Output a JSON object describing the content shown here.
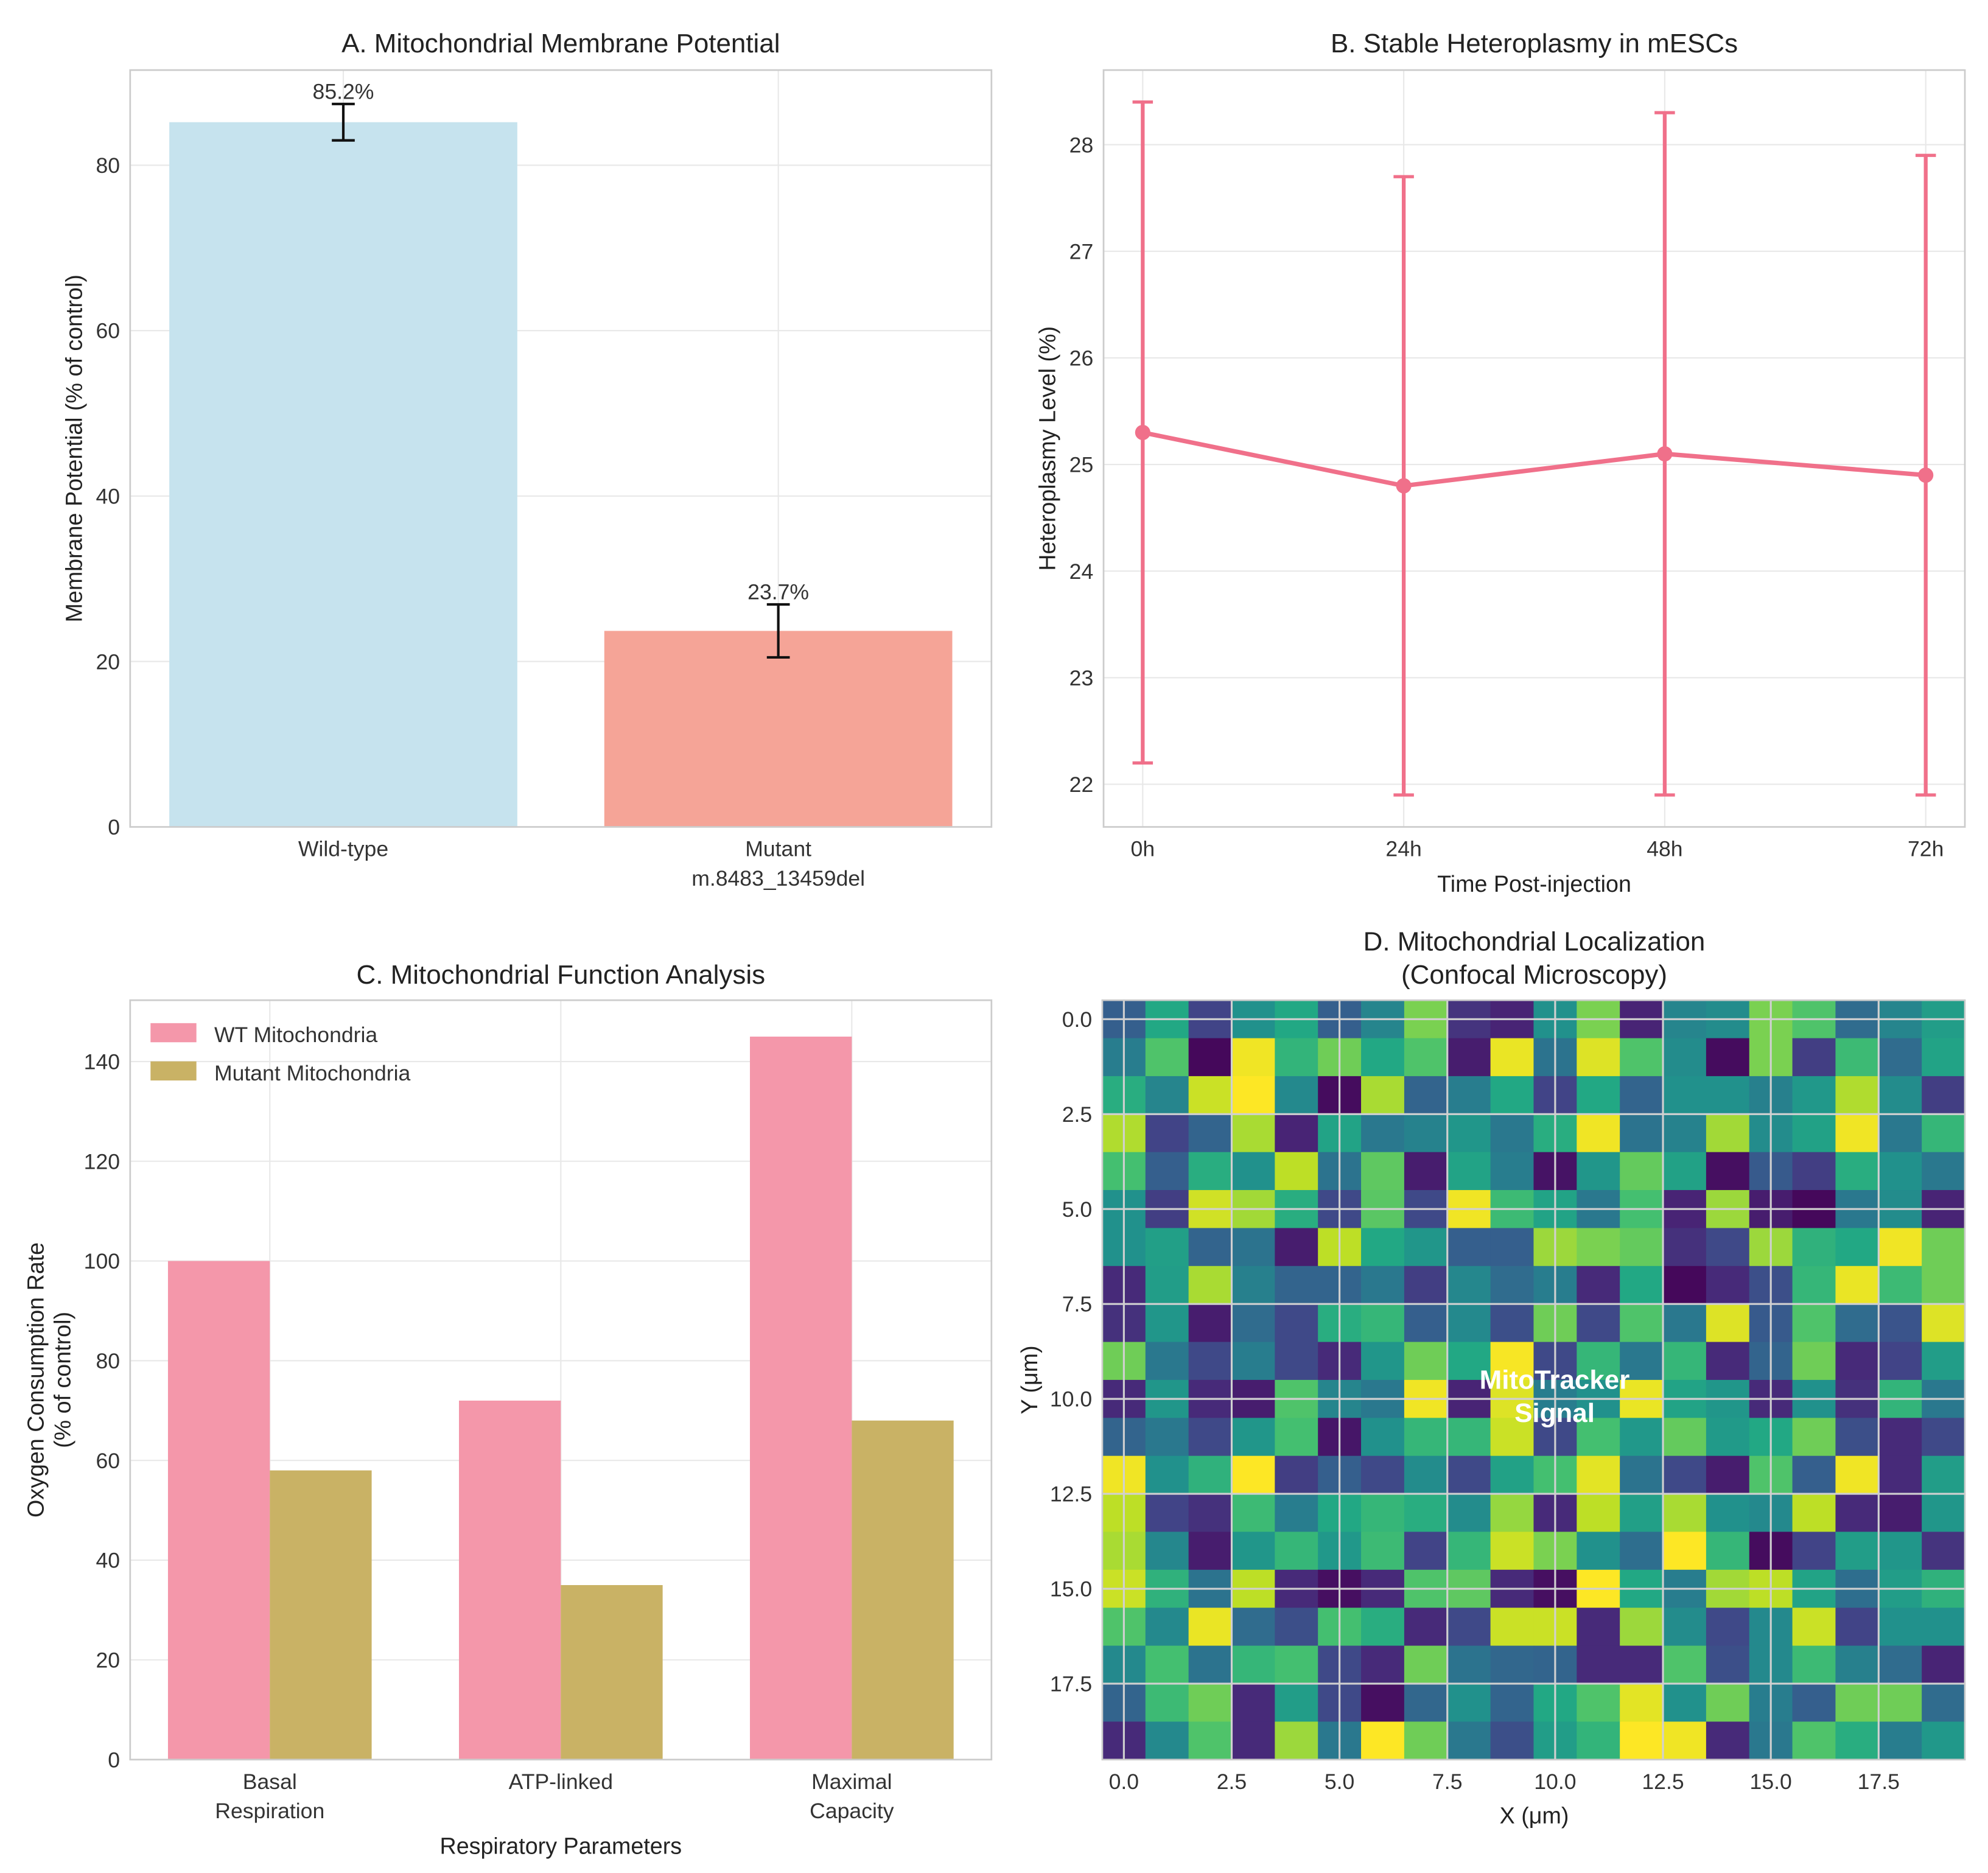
{
  "chart_data": [
    {
      "panel": "A",
      "type": "bar",
      "title": "A. Mitochondrial Membrane Potential",
      "ylabel": "Membrane Potential (% of control)",
      "xlabel": "",
      "categories": [
        "Wild-type",
        "Mutant\nm.8483_13459del"
      ],
      "values": [
        85.2,
        23.7
      ],
      "errors": [
        2.2,
        3.2
      ],
      "data_labels": [
        "85.2%",
        "23.7%"
      ],
      "colors": [
        "#c6e3ee",
        "#f5a497"
      ],
      "ylim": [
        0,
        91.5
      ],
      "yticks": [
        0,
        20,
        40,
        60,
        80
      ],
      "grid": true
    },
    {
      "panel": "B",
      "type": "line",
      "title": "B. Stable Heteroplasmy in mESCs",
      "xlabel": "Time Post-injection",
      "ylabel": "Heteroplasmy Level (%)",
      "categories": [
        "0h",
        "24h",
        "48h",
        "72h"
      ],
      "values": [
        25.3,
        24.8,
        25.1,
        24.9
      ],
      "errors": [
        3.1,
        2.9,
        3.2,
        3.0
      ],
      "color": "#f0708a",
      "ylim": [
        21.6,
        28.7
      ],
      "yticks": [
        22,
        23,
        24,
        25,
        26,
        27,
        28
      ],
      "grid": true
    },
    {
      "panel": "C",
      "type": "bar",
      "title": "C. Mitochondrial Function Analysis",
      "xlabel": "Respiratory Parameters",
      "ylabel": [
        "Oxygen Consumption Rate",
        "(% of control)"
      ],
      "categories": [
        "Basal\nRespiration",
        "ATP-linked",
        "Maximal\nCapacity"
      ],
      "series": [
        {
          "name": "WT Mitochondria",
          "values": [
            100,
            72,
            145
          ],
          "color": "#f497aa"
        },
        {
          "name": "Mutant Mitochondria",
          "values": [
            58,
            35,
            68
          ],
          "color": "#c9b265"
        }
      ],
      "ylim": [
        0,
        152.3
      ],
      "yticks": [
        0,
        20,
        40,
        60,
        80,
        100,
        120,
        140
      ],
      "legend": "top-left",
      "grid": true
    },
    {
      "panel": "D",
      "type": "heatmap",
      "title": [
        "D. Mitochondrial Localization",
        "(Confocal Microscopy)"
      ],
      "xlabel": "X (μm)",
      "ylabel": "Y (μm)",
      "annotation": [
        "MitoTracker",
        "Signal"
      ],
      "colormap": "viridis",
      "xlim": [
        -0.5,
        19.5
      ],
      "ylim": [
        19.5,
        -0.5
      ],
      "xticks": [
        "0.0",
        "2.5",
        "5.0",
        "7.5",
        "10.0",
        "12.5",
        "15.0",
        "17.5"
      ],
      "yticks": [
        "0.0",
        "2.5",
        "5.0",
        "7.5",
        "10.0",
        "12.5",
        "15.0",
        "17.5"
      ],
      "values": [
        [
          0.3,
          0.6,
          0.2,
          0.5,
          0.6,
          0.3,
          0.45,
          0.8,
          0.15,
          0.1,
          0.5,
          0.8,
          0.1,
          0.45,
          0.48,
          0.8,
          0.72,
          0.35,
          0.45,
          0.55
        ],
        [
          0.42,
          0.72,
          0.02,
          0.98,
          0.65,
          0.78,
          0.6,
          0.72,
          0.08,
          0.97,
          0.38,
          0.95,
          0.72,
          0.48,
          0.03,
          0.8,
          0.18,
          0.68,
          0.35,
          0.58
        ],
        [
          0.62,
          0.45,
          0.92,
          1.0,
          0.47,
          0.03,
          0.87,
          0.32,
          0.42,
          0.6,
          0.2,
          0.6,
          0.32,
          0.5,
          0.5,
          0.43,
          0.53,
          0.88,
          0.48,
          0.18
        ],
        [
          0.88,
          0.2,
          0.32,
          0.87,
          0.1,
          0.58,
          0.4,
          0.44,
          0.52,
          0.4,
          0.62,
          0.98,
          0.38,
          0.44,
          0.86,
          0.48,
          0.57,
          0.98,
          0.4,
          0.66
        ],
        [
          0.7,
          0.3,
          0.62,
          0.5,
          0.9,
          0.38,
          0.75,
          0.08,
          0.58,
          0.42,
          0.05,
          0.52,
          0.76,
          0.57,
          0.04,
          0.28,
          0.18,
          0.62,
          0.5,
          0.4
        ],
        [
          0.5,
          0.18,
          0.93,
          0.86,
          0.62,
          0.22,
          0.74,
          0.22,
          0.98,
          0.68,
          0.58,
          0.4,
          0.7,
          0.1,
          0.85,
          0.08,
          0.02,
          0.4,
          0.48,
          0.1
        ],
        [
          0.5,
          0.56,
          0.32,
          0.38,
          0.08,
          0.9,
          0.6,
          0.52,
          0.3,
          0.3,
          0.85,
          0.8,
          0.76,
          0.14,
          0.22,
          0.85,
          0.64,
          0.6,
          0.98,
          0.78
        ],
        [
          0.12,
          0.55,
          0.87,
          0.43,
          0.32,
          0.32,
          0.4,
          0.18,
          0.46,
          0.35,
          0.42,
          0.12,
          0.6,
          0.02,
          0.12,
          0.24,
          0.66,
          0.97,
          0.68,
          0.78
        ],
        [
          0.14,
          0.52,
          0.08,
          0.35,
          0.22,
          0.62,
          0.66,
          0.3,
          0.47,
          0.24,
          0.78,
          0.22,
          0.72,
          0.4,
          0.95,
          0.28,
          0.72,
          0.35,
          0.26,
          0.95
        ],
        [
          0.78,
          0.4,
          0.22,
          0.42,
          0.22,
          0.12,
          0.52,
          0.78,
          0.6,
          0.99,
          0.22,
          0.66,
          0.4,
          0.66,
          0.12,
          0.32,
          0.78,
          0.12,
          0.2,
          0.55
        ],
        [
          0.12,
          0.52,
          0.12,
          0.08,
          0.72,
          0.45,
          0.4,
          0.98,
          0.1,
          0.95,
          0.42,
          0.5,
          0.97,
          0.58,
          0.52,
          0.12,
          0.5,
          0.14,
          0.65,
          0.4
        ],
        [
          0.32,
          0.4,
          0.22,
          0.52,
          0.7,
          0.06,
          0.5,
          0.66,
          0.66,
          0.92,
          0.22,
          0.7,
          0.53,
          0.76,
          0.54,
          0.6,
          0.78,
          0.24,
          0.12,
          0.22
        ],
        [
          0.98,
          0.5,
          0.64,
          1.0,
          0.18,
          0.3,
          0.22,
          0.48,
          0.22,
          0.57,
          0.7,
          0.96,
          0.38,
          0.22,
          0.08,
          0.72,
          0.3,
          0.98,
          0.12,
          0.55
        ],
        [
          0.9,
          0.2,
          0.14,
          0.68,
          0.42,
          0.6,
          0.66,
          0.62,
          0.48,
          0.84,
          0.12,
          0.9,
          0.56,
          0.87,
          0.5,
          0.47,
          0.9,
          0.12,
          0.08,
          0.52
        ],
        [
          0.87,
          0.46,
          0.08,
          0.52,
          0.66,
          0.53,
          0.68,
          0.2,
          0.66,
          0.92,
          0.8,
          0.5,
          0.36,
          1.0,
          0.66,
          0.03,
          0.2,
          0.55,
          0.52,
          0.15
        ],
        [
          0.92,
          0.64,
          0.38,
          0.9,
          0.12,
          0.04,
          0.12,
          0.72,
          0.75,
          0.12,
          0.04,
          1.0,
          0.6,
          0.42,
          0.86,
          0.9,
          0.58,
          0.36,
          0.55,
          0.64
        ],
        [
          0.72,
          0.47,
          0.97,
          0.35,
          0.24,
          0.7,
          0.62,
          0.12,
          0.22,
          0.92,
          0.92,
          0.12,
          0.85,
          0.48,
          0.22,
          0.47,
          0.92,
          0.2,
          0.5,
          0.5
        ],
        [
          0.47,
          0.7,
          0.38,
          0.66,
          0.7,
          0.22,
          0.12,
          0.78,
          0.38,
          0.33,
          0.32,
          0.12,
          0.12,
          0.72,
          0.24,
          0.47,
          0.68,
          0.43,
          0.35,
          0.1
        ],
        [
          0.32,
          0.68,
          0.78,
          0.12,
          0.55,
          0.22,
          0.04,
          0.33,
          0.5,
          0.32,
          0.6,
          0.72,
          0.96,
          0.5,
          0.78,
          0.42,
          0.3,
          0.78,
          0.78,
          0.35
        ],
        [
          0.12,
          0.47,
          0.72,
          0.12,
          0.85,
          0.4,
          1.0,
          0.78,
          0.4,
          0.24,
          0.55,
          0.65,
          1.0,
          0.98,
          0.12,
          0.4,
          0.72,
          0.62,
          0.42,
          0.53
        ]
      ],
      "grid": true
    }
  ]
}
